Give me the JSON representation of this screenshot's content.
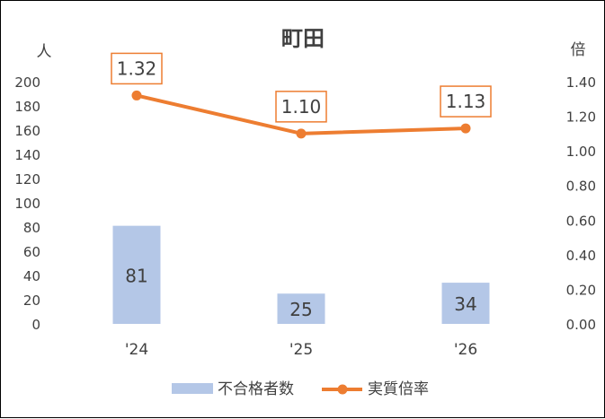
{
  "chart_data": {
    "type": "bar",
    "title": "町田",
    "categories": [
      "'24",
      "'25",
      "'26"
    ],
    "series": [
      {
        "name": "不合格者数",
        "type": "bar",
        "axis": "left",
        "values": [
          81,
          25,
          34
        ],
        "color": "#B4C7E7"
      },
      {
        "name": "実質倍率",
        "type": "line",
        "axis": "right",
        "values": [
          1.32,
          1.1,
          1.13
        ],
        "color": "#ED7D31"
      }
    ],
    "left_axis": {
      "unit": "人",
      "ylim": [
        0,
        200
      ],
      "ticks": [
        "0",
        "20",
        "40",
        "60",
        "80",
        "100",
        "120",
        "140",
        "160",
        "180",
        "200"
      ]
    },
    "right_axis": {
      "unit": "倍",
      "ylim": [
        0,
        1.4
      ],
      "ticks": [
        "0.00",
        "0.20",
        "0.40",
        "0.60",
        "0.80",
        "1.00",
        "1.20",
        "1.40"
      ]
    },
    "bar_labels": [
      "81",
      "25",
      "34"
    ],
    "line_labels": [
      "1.32",
      "1.10",
      "1.13"
    ],
    "grid": false,
    "legend": "bottom"
  }
}
